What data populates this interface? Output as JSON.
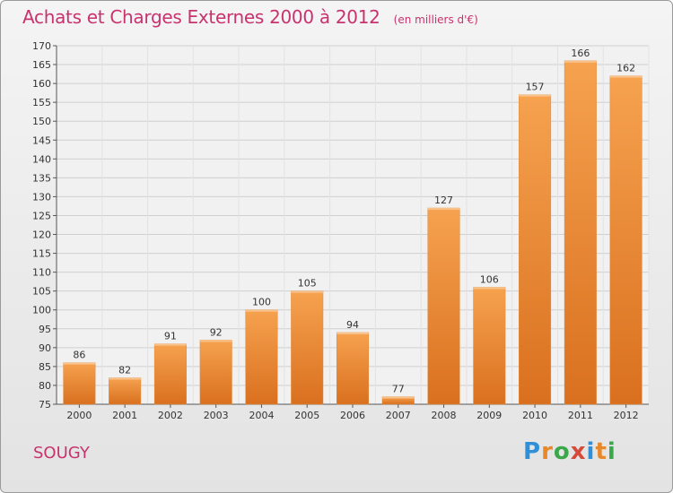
{
  "header": {
    "title": "Achats et Charges Externes 2000 à 2012",
    "subtitle": "(en milliers d'€)"
  },
  "footer": {
    "city": "SOUGY",
    "logo": "Proxiti"
  },
  "colors": {
    "bar_light": "#f6a24f",
    "bar_dark": "#d9701f",
    "title": "#c8336e"
  },
  "chart_data": {
    "type": "bar",
    "title": "Achats et Charges Externes 2000 à 2012",
    "subtitle": "(en milliers d'€)",
    "categories": [
      "2000",
      "2001",
      "2002",
      "2003",
      "2004",
      "2005",
      "2006",
      "2007",
      "2008",
      "2009",
      "2010",
      "2011",
      "2012"
    ],
    "values": [
      86,
      82,
      91,
      92,
      100,
      105,
      94,
      77,
      127,
      106,
      157,
      166,
      162
    ],
    "ylim": [
      75,
      170
    ],
    "yticks": [
      75,
      80,
      85,
      90,
      95,
      100,
      105,
      110,
      115,
      120,
      125,
      130,
      135,
      140,
      145,
      150,
      155,
      160,
      165,
      170
    ],
    "grid": true,
    "legend": "none"
  }
}
